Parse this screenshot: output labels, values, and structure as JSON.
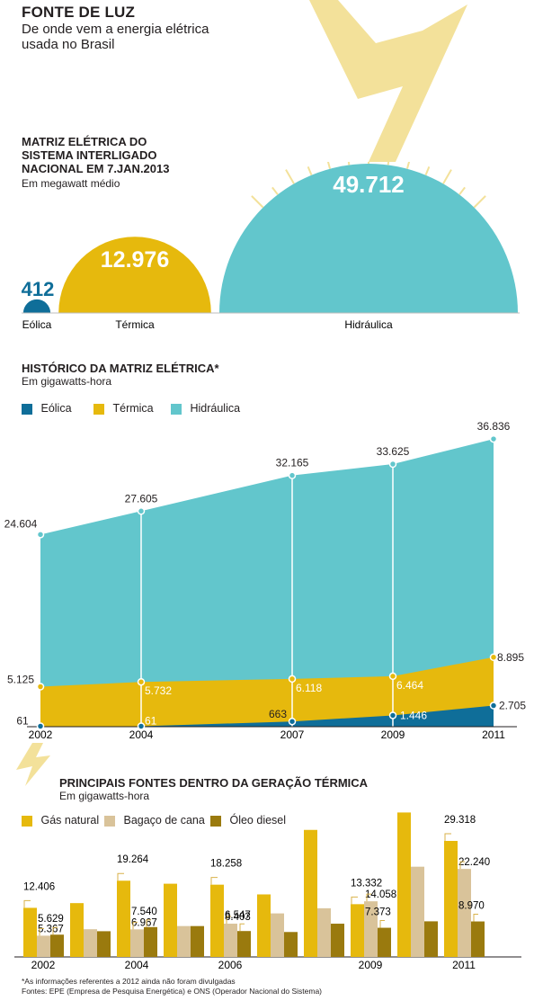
{
  "header": {
    "title": "FONTE DE LUZ",
    "subtitle": "De onde vem a energia elétrica usada no Brasil"
  },
  "matriz": {
    "title": "MATRIZ ELÉTRICA DO SISTEMA INTERLIGADO NACIONAL EM 7.JAN.2013",
    "unit": "Em megawatt médio",
    "items": [
      {
        "label": "Eólica",
        "value": "412",
        "color": "#0f6e99"
      },
      {
        "label": "Térmica",
        "value": "12.976",
        "color": "#e6b90d"
      },
      {
        "label": "Hidráulica",
        "value": "49.712",
        "color": "#62c6cc"
      }
    ]
  },
  "historico": {
    "title": "HISTÓRICO DA MATRIZ ELÉTRICA*",
    "unit": "Em gigawatts-hora",
    "legend": [
      "Eólica",
      "Térmica",
      "Hidráulica"
    ]
  },
  "termica": {
    "title": "PRINCIPAIS FONTES DENTRO DA GERAÇÃO TÉRMICA",
    "unit": "Em gigawatts-hora",
    "legend": [
      "Gás natural",
      "Bagaço de cana",
      "Óleo diesel"
    ]
  },
  "footnote": "*As informações referentes a 2012 ainda não foram divulgadas",
  "sources": "Fontes: EPE (Empresa de Pesquisa Energética) e ONS (Operador Nacional do Sistema)",
  "colors": {
    "eolica": "#0f6e99",
    "termica": "#e6b90d",
    "hidraulica": "#62c6cc",
    "gas": "#e6b90d",
    "bagaco": "#d9c39a",
    "diesel": "#9a7a0e",
    "bolt": "#f3e19a"
  },
  "chart_data": [
    {
      "type": "area",
      "title": "HISTÓRICO DA MATRIZ ELÉTRICA*",
      "ylabel": "Em gigawatts-hora",
      "x": [
        2002,
        2004,
        2007,
        2009,
        2011
      ],
      "x_tick_labels": [
        "2002",
        "2004",
        "2007",
        "2009",
        "2011"
      ],
      "series": [
        {
          "name": "Eólica",
          "values": [
            61,
            61,
            663,
            1446,
            2705
          ],
          "labels": [
            "61",
            "61",
            "663",
            "1.446",
            "2.705"
          ]
        },
        {
          "name": "Térmica",
          "values": [
            5125,
            5732,
            6118,
            6464,
            8895
          ],
          "labels": [
            "5.125",
            "5.732",
            "6.118",
            "6.464",
            "8.895"
          ]
        },
        {
          "name": "Hidráulica",
          "values": [
            24604,
            27605,
            32165,
            33625,
            36836
          ],
          "labels": [
            "24.604",
            "27.605",
            "32.165",
            "33.625",
            "36.836"
          ]
        }
      ],
      "ylim": [
        0,
        38000
      ],
      "legend": "top"
    },
    {
      "type": "bar",
      "title": "PRINCIPAIS FONTES DENTRO DA GERAÇÃO TÉRMICA",
      "ylabel": "Em gigawatts-hora",
      "categories": [
        "2002",
        "2003",
        "2004",
        "2005",
        "2006",
        "2007",
        "2008",
        "2009",
        "2010",
        "2011"
      ],
      "x_tick_labels": [
        "2002",
        "",
        "2004",
        "",
        "2006",
        "",
        "",
        "2009",
        "",
        "2011"
      ],
      "series": [
        {
          "name": "Gás natural",
          "values": [
            12406,
            13600,
            19264,
            18500,
            18258,
            15800,
            32100,
            13332,
            36500,
            29318
          ],
          "labels": [
            "12.406",
            "",
            "19.264",
            "",
            "18.258",
            "",
            "",
            "13.332",
            "",
            "29.318"
          ]
        },
        {
          "name": "Bagaço de cana",
          "values": [
            5367,
            7000,
            6967,
            7800,
            8403,
            11000,
            12300,
            14058,
            22800,
            22240
          ],
          "labels": [
            "5.367",
            "",
            "6.967",
            "",
            "8.403",
            "",
            "",
            "14.058",
            "",
            "22.240"
          ]
        },
        {
          "name": "Óleo diesel",
          "values": [
            5629,
            6500,
            7540,
            7800,
            6547,
            6300,
            8400,
            7373,
            9000,
            8970
          ],
          "labels": [
            "5.629",
            "",
            "7.540",
            "",
            "6.547",
            "",
            "",
            "7.373",
            "",
            "8.970"
          ]
        }
      ],
      "ylim": [
        0,
        37000
      ],
      "legend": "top-left"
    }
  ]
}
